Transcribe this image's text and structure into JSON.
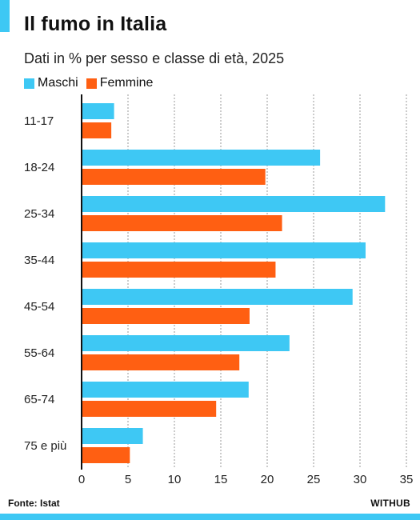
{
  "header": {
    "title": "Il fumo in Italia",
    "subtitle": "Dati in % per sesso e classe di età, 2025"
  },
  "footer": {
    "source": "Fonte: Istat",
    "brand": "WITHUB"
  },
  "colors": {
    "maschi": "#3ec8f4",
    "femmine": "#ff5f12",
    "accent": "#3ec8f4",
    "grid": "#9a9a9a"
  },
  "chart_data": {
    "type": "bar",
    "orientation": "horizontal",
    "title": "Il fumo in Italia",
    "subtitle": "Dati in % per sesso e classe di età, 2025",
    "categories": [
      "11-17",
      "18-24",
      "25-34",
      "35-44",
      "45-54",
      "55-64",
      "65-74",
      "75 e più"
    ],
    "series": [
      {
        "name": "Maschi",
        "values": [
          3.5,
          25.7,
          32.7,
          30.6,
          29.2,
          22.4,
          18.0,
          6.6
        ]
      },
      {
        "name": "Femmine",
        "values": [
          3.2,
          19.8,
          21.6,
          20.9,
          18.1,
          17.0,
          14.5,
          5.2
        ]
      }
    ],
    "xlim": [
      0,
      35
    ],
    "xticks": [
      0,
      5,
      10,
      15,
      20,
      25,
      30,
      35
    ],
    "grid": true,
    "legend_position": "top-left"
  }
}
